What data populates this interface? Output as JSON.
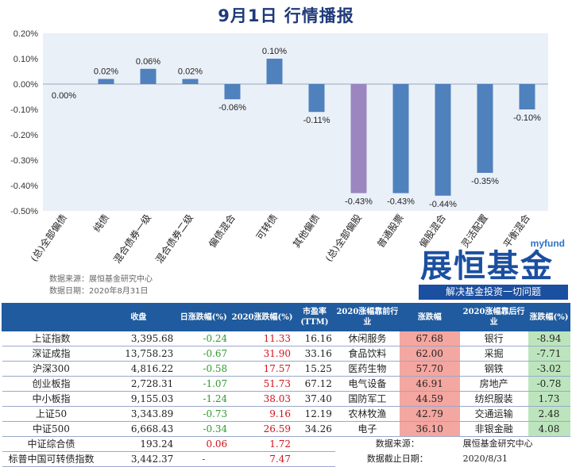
{
  "title": "9月1日  行情播报",
  "chart_data": {
    "type": "bar",
    "categories": [
      "(总)全部偏债",
      "纯债",
      "混合债券一级",
      "混合债券二级",
      "偏债混合",
      "可转债",
      "其他偏债",
      "(总)全部偏股",
      "普通股票",
      "偏股混合",
      "灵活配置",
      "平衡混合"
    ],
    "values": [
      0.0,
      0.02,
      0.06,
      0.02,
      -0.06,
      0.1,
      -0.11,
      -0.43,
      -0.43,
      -0.44,
      -0.35,
      -0.1
    ],
    "value_labels": [
      "0.00%",
      "0.02%",
      "0.06%",
      "0.02%",
      "-0.06%",
      "0.10%",
      "-0.11%",
      "-0.43%",
      "-0.43%",
      "-0.44%",
      "-0.35%",
      "-0.10%"
    ],
    "highlight_index": 7,
    "yticks": [
      "0.20%",
      "0.10%",
      "0.00%",
      "-0.10%",
      "-0.20%",
      "-0.30%",
      "-0.40%",
      "-0.50%"
    ],
    "ylim": [
      -0.5,
      0.2
    ],
    "colors": {
      "bar": "#4f81bd",
      "highlight": "#9b86c0",
      "plot_bg": "#eaf0f8"
    }
  },
  "source": {
    "line1": "数据来源：展恒基金研究中心",
    "line2": "数据日期：2020年8月31日"
  },
  "logo": {
    "en": "myfund",
    "cn": "展恒基金",
    "slogan": "解决基金投资一切问题"
  },
  "table": {
    "headers": [
      "",
      "收盘",
      "日涨跌幅(%)",
      "2020涨跌幅(%)",
      "市盈率(TTM)",
      "2020涨幅靠前行业",
      "涨跌幅",
      "2020涨幅靠后行业",
      "涨跌幅(%)"
    ],
    "rows": [
      {
        "name": "上证指数",
        "close": "3,395.68",
        "day": "-0.24",
        "ytd": "11.33",
        "pe": "16.16",
        "top_ind": "休闲服务",
        "top_chg": "67.68",
        "bot_ind": "银行",
        "bot_chg": "-8.94"
      },
      {
        "name": "深证成指",
        "close": "13,758.23",
        "day": "-0.67",
        "ytd": "31.90",
        "pe": "33.16",
        "top_ind": "食品饮料",
        "top_chg": "62.00",
        "bot_ind": "采掘",
        "bot_chg": "-7.71"
      },
      {
        "name": "沪深300",
        "close": "4,816.22",
        "day": "-0.58",
        "ytd": "17.57",
        "pe": "15.25",
        "top_ind": "医药生物",
        "top_chg": "57.70",
        "bot_ind": "钢铁",
        "bot_chg": "-3.02"
      },
      {
        "name": "创业板指",
        "close": "2,728.31",
        "day": "-1.07",
        "ytd": "51.73",
        "pe": "67.12",
        "top_ind": "电气设备",
        "top_chg": "46.91",
        "bot_ind": "房地产",
        "bot_chg": "-0.78"
      },
      {
        "name": "中小板指",
        "close": "9,155.03",
        "day": "-1.24",
        "ytd": "38.03",
        "pe": "37.40",
        "top_ind": "国防军工",
        "top_chg": "44.59",
        "bot_ind": "纺织服装",
        "bot_chg": "1.73"
      },
      {
        "name": "上证50",
        "close": "3,343.89",
        "day": "-0.73",
        "ytd": "9.16",
        "pe": "12.19",
        "top_ind": "农林牧渔",
        "top_chg": "42.79",
        "bot_ind": "交通运输",
        "bot_chg": "2.48"
      },
      {
        "name": "中证500",
        "close": "6,668.43",
        "day": "-0.34",
        "ytd": "26.59",
        "pe": "34.26",
        "top_ind": "电子",
        "top_chg": "36.10",
        "bot_ind": "非银金融",
        "bot_chg": "4.08"
      }
    ],
    "bond_rows": [
      {
        "name": "中证综合债",
        "close": "193.24",
        "day": "0.06",
        "ytd": "1.72"
      },
      {
        "name": "标普中国可转债指数",
        "close": "3,442.37",
        "day": "-",
        "ytd": "7.47"
      }
    ],
    "footer": {
      "source_label": "数据来源：",
      "source_value": "展恒基金研究中心",
      "date_label": "数据截止日期：",
      "date_value": "2020/8/31"
    }
  }
}
